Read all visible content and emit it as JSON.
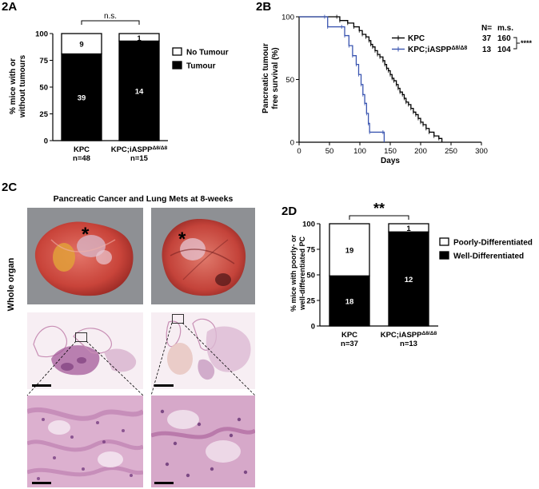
{
  "panels": {
    "a": "2A",
    "b": "2B",
    "c": "2C",
    "d": "2D"
  },
  "chart_data": [
    {
      "id": "2A",
      "type": "bar",
      "stacked": true,
      "categories": [
        "KPC",
        "KPC;iASPP"
      ],
      "category_superscript": [
        "",
        "Δ8/Δ8"
      ],
      "category_sublabels": [
        "n=48",
        "n=15"
      ],
      "series": [
        {
          "name": "Tumour",
          "color": "#000000",
          "percent": [
            81,
            93
          ],
          "counts": [
            "39",
            "14"
          ]
        },
        {
          "name": "No Tumour",
          "color": "#ffffff",
          "percent": [
            19,
            7
          ],
          "counts": [
            "9",
            "1"
          ]
        }
      ],
      "ylabel": "% mice with or without tumours",
      "ylabel_lines": [
        "% mice with or",
        "without tumours"
      ],
      "ylim": [
        0,
        100
      ],
      "yticks": [
        "0",
        "25",
        "50",
        "75",
        "100"
      ],
      "significance": "n.s.",
      "legend_position": "right"
    },
    {
      "id": "2B",
      "type": "line",
      "step": true,
      "xlabel": "Days",
      "ylabel": "Pancreatic tumour free survival (%)",
      "ylabel_lines": [
        "Pancreatic tumour",
        "free survival (%)"
      ],
      "xlim": [
        0,
        300
      ],
      "ylim": [
        0,
        100
      ],
      "xticks": [
        "0",
        "50",
        "100",
        "150",
        "200",
        "250",
        "300"
      ],
      "yticks": [
        "0",
        "50",
        "100"
      ],
      "series": [
        {
          "name": "KPC",
          "color": "#000000",
          "n": "37",
          "median_survival": "160",
          "points": [
            [
              0,
              100
            ],
            [
              62,
              100
            ],
            [
              67,
              97
            ],
            [
              80,
              95
            ],
            [
              90,
              92
            ],
            [
              99,
              89
            ],
            [
              104,
              86
            ],
            [
              110,
              84
            ],
            [
              115,
              81
            ],
            [
              118,
              78
            ],
            [
              121,
              76
            ],
            [
              125,
              73
            ],
            [
              129,
              70
            ],
            [
              133,
              68
            ],
            [
              138,
              65
            ],
            [
              141,
              62
            ],
            [
              144,
              59
            ],
            [
              147,
              57
            ],
            [
              150,
              54
            ],
            [
              153,
              51
            ],
            [
              156,
              49
            ],
            [
              160,
              46
            ],
            [
              163,
              43
            ],
            [
              166,
              40
            ],
            [
              170,
              38
            ],
            [
              173,
              35
            ],
            [
              176,
              32
            ],
            [
              180,
              30
            ],
            [
              184,
              27
            ],
            [
              188,
              24
            ],
            [
              192,
              22
            ],
            [
              196,
              19
            ],
            [
              200,
              16
            ],
            [
              204,
              14
            ],
            [
              209,
              11
            ],
            [
              214,
              8
            ],
            [
              222,
              5
            ],
            [
              230,
              3
            ],
            [
              235,
              0
            ]
          ]
        },
        {
          "name": "KPC;iASPP",
          "name_superscript": "Δ8/Δ8",
          "color": "#3a55b0",
          "n": "13",
          "median_survival": "104",
          "points": [
            [
              0,
              100
            ],
            [
              42,
              100
            ],
            [
              47,
              92
            ],
            [
              70,
              92
            ],
            [
              75,
              85
            ],
            [
              82,
              77
            ],
            [
              88,
              69
            ],
            [
              94,
              62
            ],
            [
              98,
              54
            ],
            [
              102,
              46
            ],
            [
              105,
              38
            ],
            [
              108,
              31
            ],
            [
              111,
              23
            ],
            [
              114,
              15
            ],
            [
              116,
              8
            ],
            [
              138,
              8
            ],
            [
              140,
              0
            ]
          ]
        }
      ],
      "legend_headers": [
        "N=",
        "m.s."
      ],
      "significance": "****",
      "legend_position": "right"
    },
    {
      "id": "2D",
      "type": "bar",
      "stacked": true,
      "categories": [
        "KPC",
        "KPC;iASPP"
      ],
      "category_superscript": [
        "",
        "Δ8/Δ8"
      ],
      "category_sublabels": [
        "n=37",
        "n=13"
      ],
      "series": [
        {
          "name": "Well-Differentiated",
          "color": "#000000",
          "percent": [
            49,
            92
          ],
          "counts": [
            "18",
            "12"
          ]
        },
        {
          "name": "Poorly-Differentiated",
          "color": "#ffffff",
          "percent": [
            51,
            8
          ],
          "counts": [
            "19",
            "1"
          ]
        }
      ],
      "ylabel": "% mice with poorly- or well-differentiated PC",
      "ylabel_lines": [
        "% mice with poorly- or",
        "well-differentiated PC"
      ],
      "ylim": [
        0,
        100
      ],
      "yticks": [
        "0",
        "25",
        "50",
        "75",
        "100"
      ],
      "significance": "**",
      "legend_position": "right"
    }
  ],
  "figure_2c": {
    "title": "Pancreatic Cancer and Lung Mets at 8-weeks",
    "side_label": "Whole organ",
    "organ_marker": "*",
    "colors": {
      "organ": "#c9443a",
      "tissue": "#d9a6c9",
      "background_photo": "#8e9094"
    }
  }
}
